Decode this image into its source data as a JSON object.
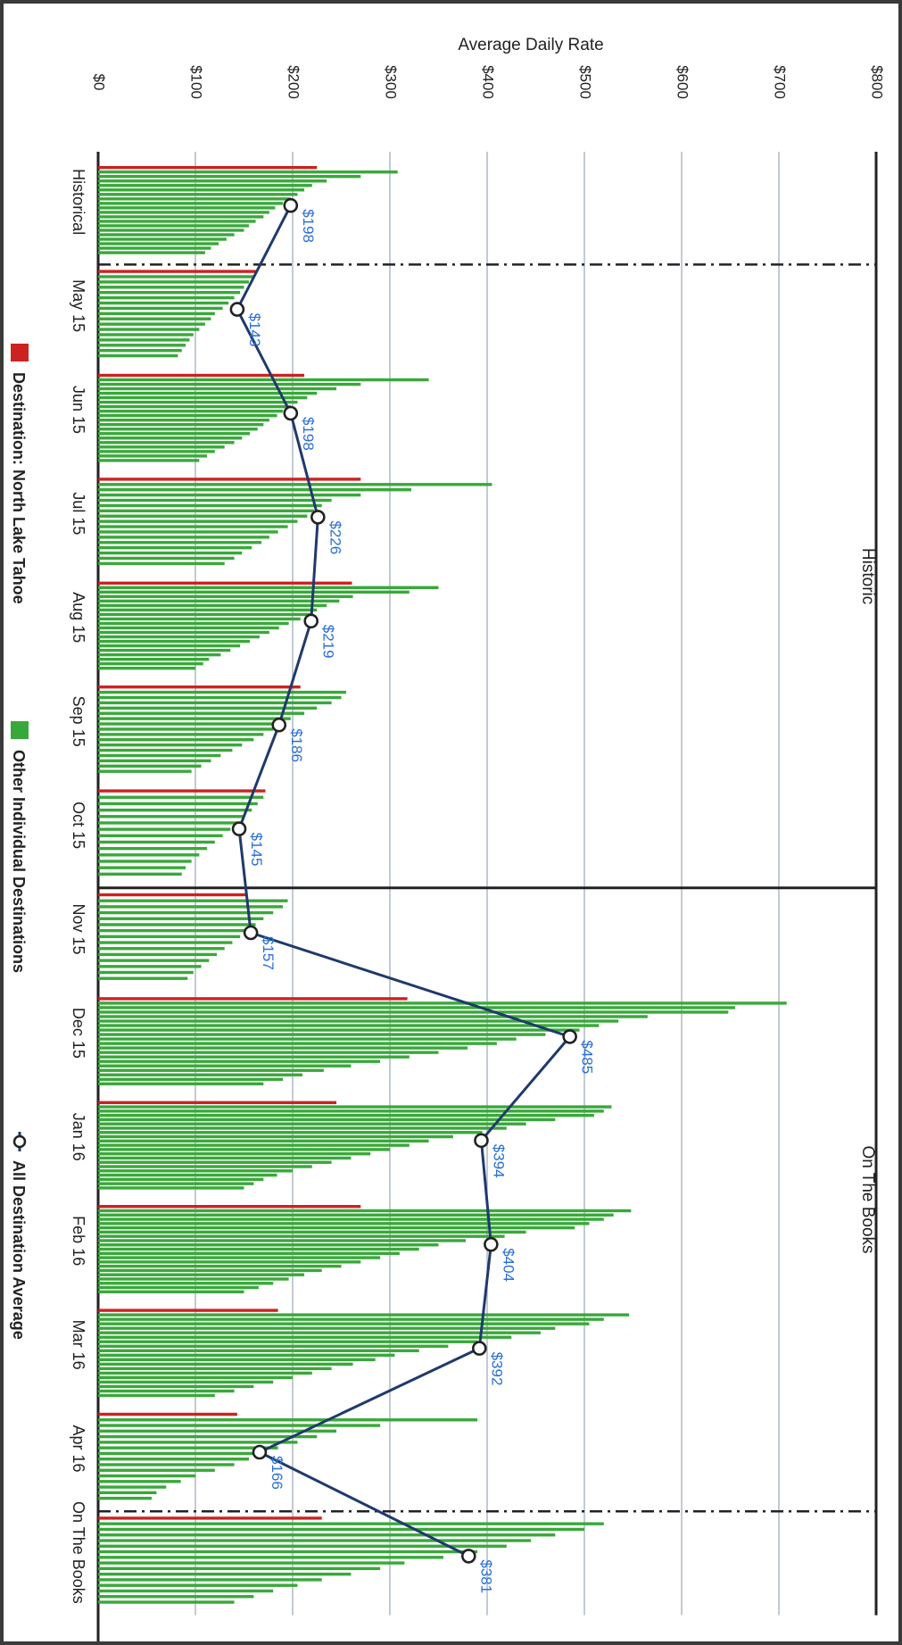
{
  "chart_data": {
    "type": "bar",
    "orientation": "rotated-90-clockwise",
    "ylabel": "Average Daily Rate",
    "ylim": [
      0,
      800
    ],
    "yticks": [
      "$0",
      "$100",
      "$200",
      "$300",
      "$400",
      "$500",
      "$600",
      "$700",
      "$800"
    ],
    "grid": true,
    "sections": [
      "Historic",
      "On The Books"
    ],
    "categories": [
      "Historical",
      "May 15",
      "Jun 15",
      "Jul 15",
      "Aug 15",
      "Sep 15",
      "Oct 15",
      "Nov 15",
      "Dec 15",
      "Jan 16",
      "Feb 16",
      "Mar 16",
      "Apr 16",
      "On The Books"
    ],
    "series": [
      {
        "name": "Destination: North Lake Tahoe",
        "values": [
          225,
          162,
          212,
          270,
          261,
          208,
          172,
          152,
          318,
          245,
          270,
          185,
          143,
          230
        ]
      },
      {
        "name": "Other Individual Destinations",
        "values": [
          [
            308,
            270,
            235,
            220,
            212,
            205,
            198,
            190,
            182,
            176,
            170,
            162,
            155,
            150,
            140,
            132,
            124,
            116,
            110
          ],
          [
            160,
            155,
            150,
            146,
            140,
            134,
            128,
            120,
            116,
            110,
            104,
            98,
            94,
            90,
            86,
            82
          ],
          [
            340,
            270,
            245,
            225,
            215,
            205,
            198,
            190,
            184,
            176,
            170,
            164,
            156,
            148,
            140,
            130,
            120,
            112,
            104
          ],
          [
            405,
            322,
            270,
            240,
            230,
            222,
            215,
            205,
            195,
            185,
            176,
            168,
            158,
            148,
            140,
            130
          ],
          [
            350,
            320,
            262,
            248,
            235,
            225,
            218,
            208,
            196,
            186,
            176,
            166,
            156,
            146,
            136,
            126,
            114,
            108,
            100
          ],
          [
            255,
            250,
            240,
            225,
            212,
            198,
            190,
            180,
            170,
            160,
            148,
            138,
            126,
            116,
            106,
            96
          ],
          [
            170,
            164,
            158,
            150,
            144,
            136,
            128,
            120,
            112,
            104,
            96,
            90,
            86
          ],
          [
            195,
            190,
            180,
            170,
            162,
            154,
            146,
            138,
            130,
            122,
            114,
            106,
            98,
            92
          ],
          [
            708,
            655,
            648,
            565,
            535,
            515,
            495,
            460,
            430,
            410,
            380,
            350,
            320,
            290,
            260,
            232,
            210,
            190,
            170
          ],
          [
            528,
            520,
            510,
            470,
            440,
            420,
            395,
            365,
            340,
            320,
            300,
            280,
            260,
            240,
            220,
            200,
            184,
            170,
            160,
            150
          ],
          [
            548,
            530,
            520,
            505,
            490,
            440,
            418,
            378,
            350,
            330,
            310,
            290,
            270,
            250,
            230,
            212,
            196,
            180,
            165,
            150
          ],
          [
            546,
            520,
            505,
            470,
            455,
            425,
            390,
            360,
            330,
            305,
            285,
            262,
            240,
            220,
            200,
            180,
            160,
            140,
            120
          ],
          [
            390,
            290,
            245,
            225,
            205,
            185,
            170,
            155,
            140,
            120,
            100,
            85,
            70,
            60,
            55
          ],
          [
            520,
            500,
            470,
            445,
            420,
            390,
            355,
            315,
            290,
            260,
            230,
            205,
            180,
            160,
            140
          ]
        ]
      },
      {
        "name": "All Destination Average",
        "type": "line",
        "values": [
          198,
          143,
          198,
          226,
          219,
          186,
          145,
          157,
          485,
          394,
          404,
          392,
          166,
          381
        ],
        "labels": [
          "$198",
          "$143",
          "$198",
          "$226",
          "$219",
          "$186",
          "$145",
          "$157",
          "$485",
          "$394",
          "$404",
          "$392",
          "$166",
          "$381"
        ]
      }
    ],
    "legend": {
      "placement": "bottom",
      "items": [
        {
          "label": "Destination: North Lake Tahoe",
          "marker": "square",
          "color": "#cc2222"
        },
        {
          "label": "Other Individual Destinations",
          "marker": "square",
          "color": "#39a83a"
        },
        {
          "label": "All Destination Average",
          "marker": "line-circle",
          "color": "#1f3a6b"
        }
      ]
    },
    "colors": {
      "tahoe": "#cc2222",
      "others": "#39a83a",
      "average_line": "#1f3a6b",
      "average_label": "#2a6fd6",
      "grid": "#9aa6b8",
      "section_divider": "#222222",
      "frame": "#3a3a3a"
    }
  }
}
